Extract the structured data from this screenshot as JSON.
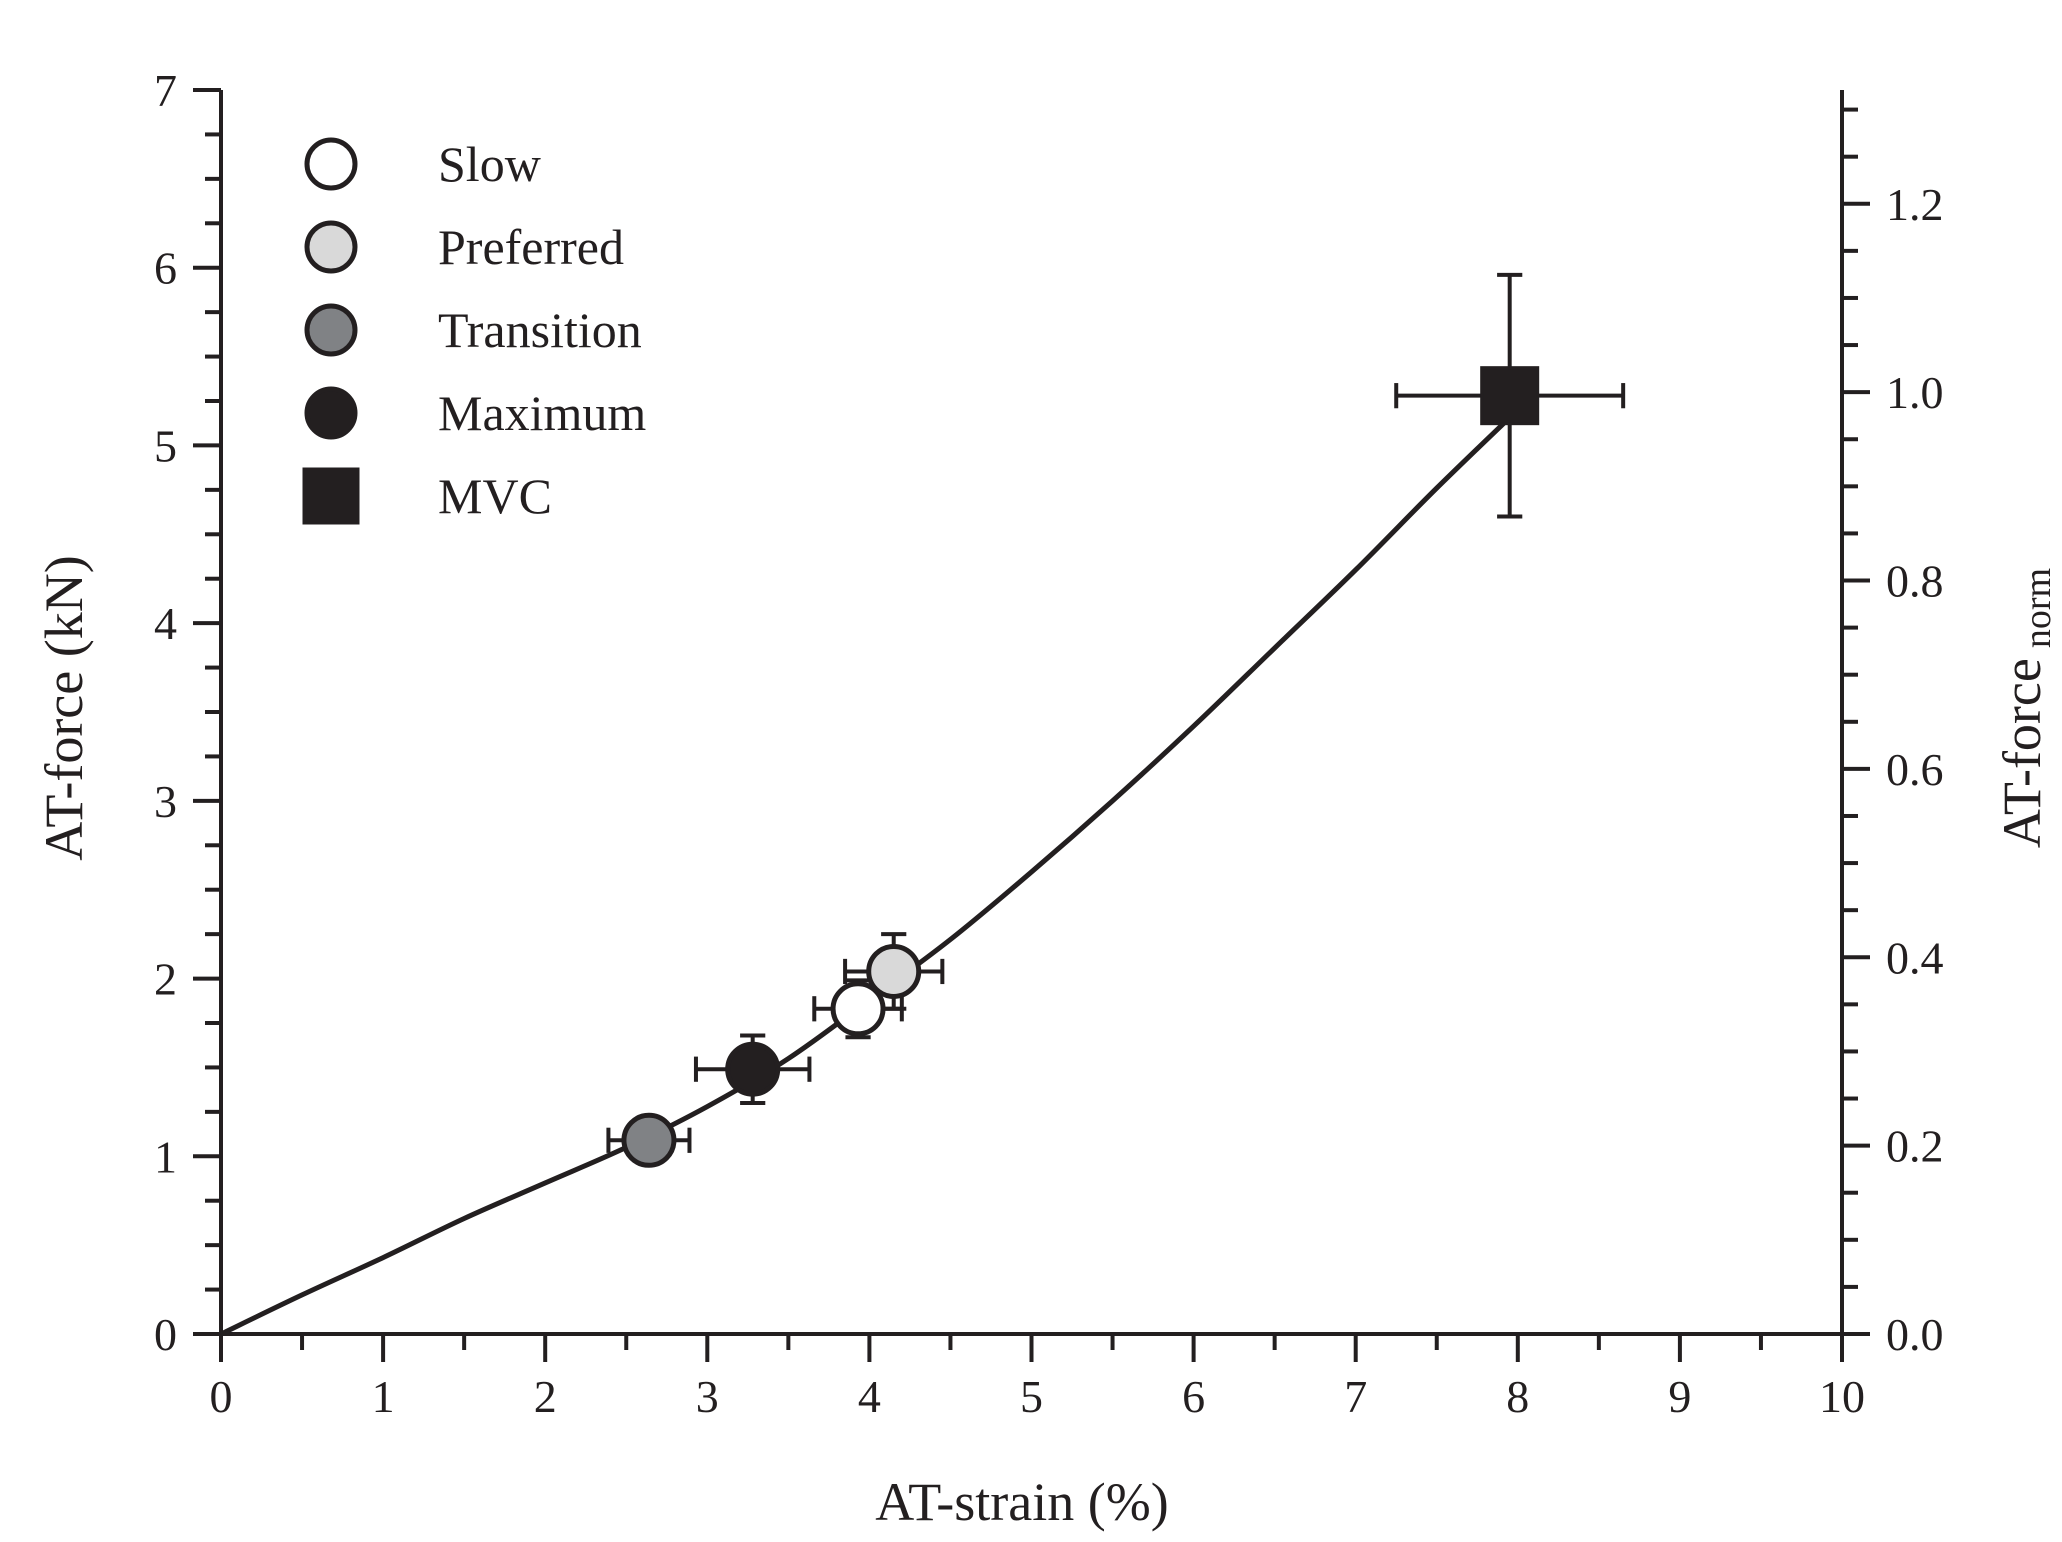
{
  "chart_data": {
    "type": "scatter",
    "title": "",
    "xlabel": "AT-strain (%)",
    "ylabel": "AT-force (kN)",
    "y2label": {
      "main": "AT-force",
      "subscript": "norm"
    },
    "xlim": [
      0,
      10
    ],
    "ylim": [
      0,
      7
    ],
    "y2lim": [
      0,
      1.3208
    ],
    "x_ticks": [
      0,
      1,
      2,
      3,
      4,
      5,
      6,
      7,
      8,
      9,
      10
    ],
    "x_tick_labels": [
      "0",
      "1",
      "2",
      "3",
      "4",
      "5",
      "6",
      "7",
      "8",
      "9",
      "10"
    ],
    "y_ticks": [
      0,
      1,
      2,
      3,
      4,
      5,
      6,
      7
    ],
    "y_tick_labels": [
      "0",
      "1",
      "2",
      "3",
      "4",
      "5",
      "6",
      "7"
    ],
    "y2_ticks": [
      0.0,
      0.2,
      0.4,
      0.6,
      0.8,
      1.0,
      1.2
    ],
    "y2_tick_labels": [
      "0.0",
      "0.2",
      "0.4",
      "0.6",
      "0.8",
      "1.0",
      "1.2"
    ],
    "grid": false,
    "legend_position": "top-left",
    "series": [
      {
        "name": "Slow",
        "marker": "circle",
        "fill": "#ffffff",
        "x": 3.93,
        "y": 1.83,
        "x_err": 0.27,
        "y_err": 0.16
      },
      {
        "name": "Preferred",
        "marker": "circle",
        "fill": "#d9d9d9",
        "x": 4.15,
        "y": 2.04,
        "x_err": 0.3,
        "y_err": 0.21
      },
      {
        "name": "Transition",
        "marker": "circle",
        "fill": "#808285",
        "x": 2.64,
        "y": 1.09,
        "x_err": 0.25,
        "y_err": 0.08
      },
      {
        "name": "Maximum",
        "marker": "circle",
        "fill": "#231f20",
        "x": 3.28,
        "y": 1.49,
        "x_err": 0.35,
        "y_err": 0.19
      },
      {
        "name": "MVC",
        "marker": "square",
        "fill": "#231f20",
        "x": 7.95,
        "y": 5.28,
        "x_err": 0.7,
        "y_err": 0.68
      }
    ],
    "fit_curve": {
      "name": "fit",
      "x": [
        0,
        0.5,
        1,
        1.5,
        2,
        2.5,
        3,
        3.5,
        4,
        4.5,
        5,
        5.5,
        6,
        6.5,
        7,
        7.5,
        8
      ],
      "y": [
        0,
        0.22,
        0.43,
        0.65,
        0.85,
        1.05,
        1.28,
        1.55,
        1.88,
        2.22,
        2.6,
        3.0,
        3.42,
        3.86,
        4.3,
        4.76,
        5.2
      ]
    }
  }
}
